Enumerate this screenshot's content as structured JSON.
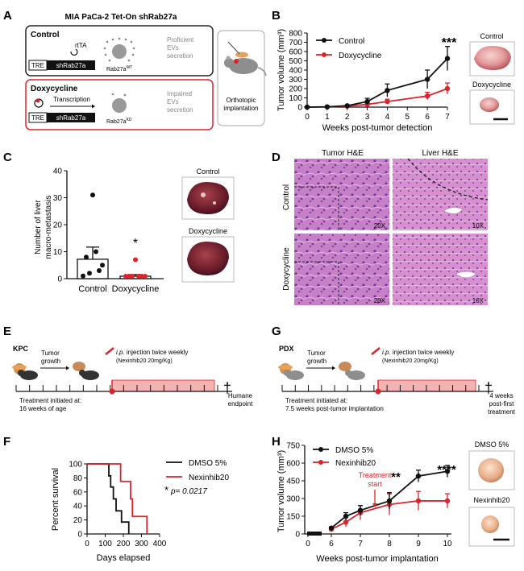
{
  "panels": {
    "A": {
      "letter": "A",
      "title": "MIA PaCa-2 Tet-On shRab27a",
      "control": {
        "label": "Control",
        "rtta": "rtTA",
        "tre": "TRE",
        "gene": "shRab27a",
        "rab": "Rab27a",
        "rab_sup": "WT",
        "outcome": [
          "Proficient",
          "EVs",
          "secretion"
        ]
      },
      "dox": {
        "label": "Doxycycline",
        "arrow": "Transcription",
        "tre": "TRE",
        "gene": "shRab27a",
        "rab": "Rab27a",
        "rab_sup": "KD",
        "outcome": [
          "Impaired",
          "EVs",
          "secretion"
        ]
      },
      "implant": [
        "Orthotopic",
        "implantation"
      ]
    },
    "B": {
      "letter": "B",
      "img_labels": [
        "Control",
        "Doxycycline"
      ],
      "legend": [
        "Control",
        "Doxycycline"
      ],
      "stars": "***"
    },
    "C": {
      "letter": "C",
      "img_labels": [
        "Control",
        "Doxycycline"
      ],
      "star": "*"
    },
    "D": {
      "letter": "D",
      "cols": [
        "Tumor H&E",
        "Liver H&E"
      ],
      "rows": [
        "Control",
        "Doxycycline"
      ],
      "mags": [
        "20X",
        "10X",
        "20X",
        "10X"
      ]
    },
    "E": {
      "letter": "E",
      "model": "KPC",
      "growth": [
        "Tumor",
        "growth"
      ],
      "injection_route": "i.p.",
      "injection": " injection twice weekly",
      "drug": "(Nexinhib20 20mg/Kg)",
      "initiated": [
        "Treatment initiated at:",
        "16 weeks of age"
      ],
      "endpoint": [
        "Humane",
        "endpoint"
      ]
    },
    "F": {
      "letter": "F",
      "legend": [
        "DMSO 5%",
        "Nexinhib20"
      ],
      "pvalue_star": "*",
      "pvalue": "p= 0.0217"
    },
    "G": {
      "letter": "G",
      "model": "PDX",
      "growth": [
        "Tumor",
        "growth"
      ],
      "injection_route": "i.p.",
      "injection": " injection twice weekly",
      "drug": "(Nexinhib20 20mg/Kg)",
      "initiated": [
        "Treatment initiated at:",
        "7.5 weeks post-tumor implantation"
      ],
      "endpoint": [
        "4 weeks",
        "post-first",
        "treatment"
      ]
    },
    "H": {
      "letter": "H",
      "img_labels": [
        "DMSO 5%",
        "Nexinhib20"
      ],
      "legend": [
        "DMSO 5%",
        "Nexinhib20"
      ],
      "treatment": [
        "Treatment",
        "start"
      ],
      "stars": [
        "**",
        "****"
      ]
    }
  },
  "colors": {
    "control": "#111111",
    "treated": "#d8262c",
    "box_red": "#d8262c",
    "timeline": "#f4b3b3"
  },
  "chart_data": [
    {
      "panel": "B",
      "type": "line",
      "xlabel": "Weeks post-tumor detection",
      "ylabel": "Tumor volume (mm³)",
      "xlim": [
        0,
        7
      ],
      "ylim": [
        0,
        800
      ],
      "xticks": [
        0,
        1,
        2,
        3,
        4,
        5,
        6,
        7
      ],
      "yticks": [
        0,
        100,
        200,
        300,
        400,
        500,
        600,
        700,
        800
      ],
      "grid": false,
      "legend_position": "top-left",
      "series": [
        {
          "name": "Control",
          "x": [
            0,
            1,
            2,
            3,
            4,
            6,
            7
          ],
          "y": [
            0,
            3,
            15,
            60,
            180,
            300,
            525
          ],
          "err": [
            0,
            2,
            8,
            35,
            70,
            100,
            130
          ]
        },
        {
          "name": "Doxycycline",
          "x": [
            0,
            1,
            2,
            3,
            4,
            6,
            7
          ],
          "y": [
            0,
            2,
            10,
            30,
            60,
            120,
            200
          ],
          "err": [
            0,
            2,
            5,
            15,
            25,
            40,
            60
          ]
        }
      ]
    },
    {
      "panel": "C",
      "type": "bar",
      "ylabel": "Number of liver macro-metastasis",
      "categories": [
        "Control",
        "Doxycycline"
      ],
      "values": [
        7.2,
        0.9
      ],
      "err": [
        4.5,
        0.6
      ],
      "ylim": [
        0,
        40
      ],
      "yticks": [
        0,
        10,
        20,
        30,
        40
      ],
      "points": [
        [
          1,
          2,
          3,
          5,
          8,
          10,
          31
        ],
        [
          0,
          0,
          0,
          0,
          0,
          0,
          7
        ]
      ]
    },
    {
      "panel": "F",
      "type": "line",
      "xlabel": "Days elapsed",
      "ylabel": "Percent survival",
      "xlim": [
        0,
        400
      ],
      "ylim": [
        0,
        100
      ],
      "xticks": [
        0,
        100,
        200,
        300,
        400
      ],
      "yticks": [
        0,
        20,
        40,
        60,
        80,
        100
      ],
      "legend_position": "top-right",
      "series": [
        {
          "name": "DMSO 5%",
          "x": [
            0,
            120,
            130,
            145,
            160,
            190,
            210,
            230
          ],
          "y": [
            100,
            83,
            67,
            50,
            33,
            17,
            17,
            0
          ]
        },
        {
          "name": "Nexinhib20",
          "x": [
            0,
            185,
            205,
            240,
            250,
            300,
            330
          ],
          "y": [
            100,
            75,
            75,
            50,
            25,
            25,
            0
          ]
        }
      ]
    },
    {
      "panel": "H",
      "type": "line",
      "xlabel": "Weeks post-tumor implantation",
      "ylabel": "Tumor volume (mm³)",
      "xticks": [
        0,
        6,
        7,
        8,
        9,
        10
      ],
      "yticks": [
        0,
        150,
        300,
        450,
        600,
        750
      ],
      "ylim": [
        0,
        750
      ],
      "treatment_start": 7.5,
      "legend_position": "top-left",
      "series": [
        {
          "name": "DMSO 5%",
          "x": [
            6,
            6.5,
            7,
            8,
            9,
            10
          ],
          "y": [
            50,
            150,
            200,
            280,
            490,
            530
          ],
          "err": [
            10,
            30,
            40,
            70,
            50,
            50
          ]
        },
        {
          "name": "Nexinhib20",
          "x": [
            6,
            6.5,
            7,
            8,
            9,
            10
          ],
          "y": [
            40,
            100,
            180,
            250,
            280,
            280
          ],
          "err": [
            10,
            40,
            60,
            90,
            80,
            60
          ]
        }
      ]
    }
  ]
}
